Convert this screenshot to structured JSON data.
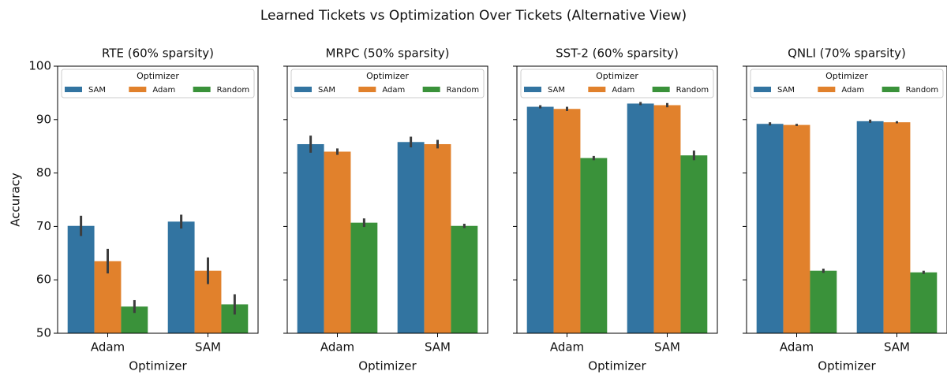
{
  "title": "Learned Tickets vs Optimization Over Tickets (Alternative View)",
  "chart_data": [
    {
      "type": "bar",
      "title": "RTE (60% sparsity)",
      "xlabel": "Optimizer",
      "ylabel": "Accuracy",
      "categories": [
        "Adam",
        "SAM"
      ],
      "legend_title": "Optimizer",
      "series": [
        {
          "name": "SAM",
          "color": "#3274a1",
          "values": [
            70.1,
            70.9
          ],
          "errors": [
            1.9,
            1.3
          ]
        },
        {
          "name": "Adam",
          "color": "#e1812c",
          "values": [
            63.5,
            61.7
          ],
          "errors": [
            2.3,
            2.5
          ]
        },
        {
          "name": "Random",
          "color": "#3a923a",
          "values": [
            55.0,
            55.4
          ],
          "errors": [
            1.2,
            1.9
          ]
        }
      ],
      "ylim": [
        50,
        100
      ],
      "yticks": [
        50,
        60,
        70,
        80,
        90,
        100
      ],
      "show_ytick_labels": true
    },
    {
      "type": "bar",
      "title": "MRPC (50% sparsity)",
      "xlabel": "Optimizer",
      "categories": [
        "Adam",
        "SAM"
      ],
      "legend_title": "Optimizer",
      "series": [
        {
          "name": "SAM",
          "color": "#3274a1",
          "values": [
            85.4,
            85.8
          ],
          "errors": [
            1.6,
            1.0
          ]
        },
        {
          "name": "Adam",
          "color": "#e1812c",
          "values": [
            84.0,
            85.4
          ],
          "errors": [
            0.6,
            0.8
          ]
        },
        {
          "name": "Random",
          "color": "#3a923a",
          "values": [
            70.7,
            70.1
          ],
          "errors": [
            0.8,
            0.4
          ]
        }
      ],
      "ylim": [
        50,
        100
      ],
      "yticks": [
        50,
        60,
        70,
        80,
        90,
        100
      ],
      "show_ytick_labels": false
    },
    {
      "type": "bar",
      "title": "SST-2 (60% sparsity)",
      "xlabel": "Optimizer",
      "categories": [
        "Adam",
        "SAM"
      ],
      "legend_title": "Optimizer",
      "series": [
        {
          "name": "SAM",
          "color": "#3274a1",
          "values": [
            92.4,
            93.0
          ],
          "errors": [
            0.3,
            0.3
          ]
        },
        {
          "name": "Adam",
          "color": "#e1812c",
          "values": [
            92.0,
            92.7
          ],
          "errors": [
            0.4,
            0.4
          ]
        },
        {
          "name": "Random",
          "color": "#3a923a",
          "values": [
            82.8,
            83.3
          ],
          "errors": [
            0.4,
            0.9
          ]
        }
      ],
      "ylim": [
        50,
        100
      ],
      "yticks": [
        50,
        60,
        70,
        80,
        90,
        100
      ],
      "show_ytick_labels": false
    },
    {
      "type": "bar",
      "title": "QNLI (70% sparsity)",
      "xlabel": "Optimizer",
      "categories": [
        "Adam",
        "SAM"
      ],
      "legend_title": "Optimizer",
      "series": [
        {
          "name": "SAM",
          "color": "#3274a1",
          "values": [
            89.2,
            89.7
          ],
          "errors": [
            0.3,
            0.3
          ]
        },
        {
          "name": "Adam",
          "color": "#e1812c",
          "values": [
            89.0,
            89.5
          ],
          "errors": [
            0.2,
            0.2
          ]
        },
        {
          "name": "Random",
          "color": "#3a923a",
          "values": [
            61.7,
            61.4
          ],
          "errors": [
            0.4,
            0.3
          ]
        }
      ],
      "ylim": [
        50,
        100
      ],
      "yticks": [
        50,
        60,
        70,
        80,
        90,
        100
      ],
      "show_ytick_labels": false
    }
  ]
}
